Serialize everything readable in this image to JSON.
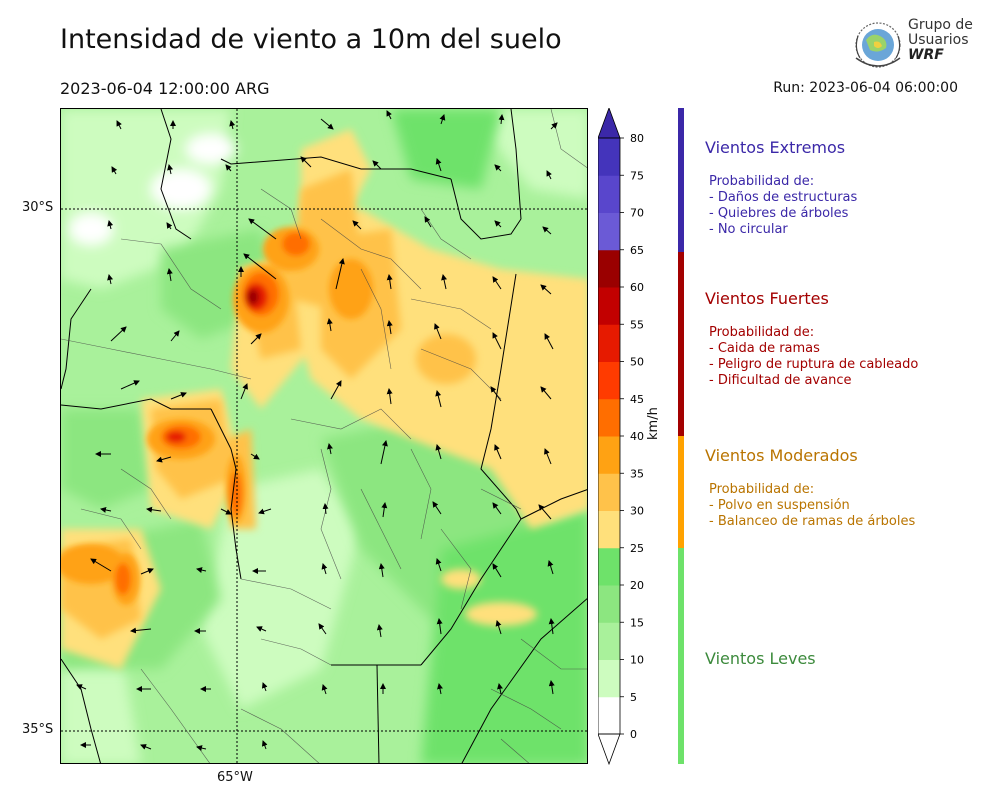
{
  "title": "Intensidad de viento a 10m del suelo",
  "valid_time": "2023-06-04 12:00:00 ARG",
  "run_time": "Run: 2023-06-04 06:00:00",
  "logo": {
    "line1": "Grupo de",
    "line2": "Usuarios",
    "line3": "WRF"
  },
  "map": {
    "lat_labels": [
      "30°S",
      "35°S"
    ],
    "lon_labels": [
      "65°W"
    ]
  },
  "colorbar": {
    "unit": "km/h",
    "ticks": [
      "0",
      "5",
      "10",
      "15",
      "20",
      "25",
      "30",
      "35",
      "40",
      "45",
      "50",
      "55",
      "60",
      "65",
      "70",
      "75",
      "80"
    ],
    "colors": [
      "#ffffff",
      "#cdfcbf",
      "#a9f19b",
      "#8ce680",
      "#6ee26a",
      "#ffe07b",
      "#ffc24a",
      "#ffa213",
      "#ff6e00",
      "#ff3b00",
      "#e61a00",
      "#c20000",
      "#9a0000",
      "#6b5ad6",
      "#5946cc",
      "#4434bb"
    ],
    "over_color": "#3b28a8"
  },
  "categories": [
    {
      "title": "Vientos Extremos",
      "color": "#3b28a8",
      "bar_color": "#3b28a8",
      "header": "Probabilidad de:",
      "items": [
        "- Daños de estructuras",
        "- Quiebres de árboles",
        "- No circular"
      ]
    },
    {
      "title": "Vientos Fuertes",
      "color": "#a30000",
      "bar_color": "#a30000",
      "header": "Probabilidad de:",
      "items": [
        "- Caida de ramas",
        "- Peligro de ruptura de cableado",
        "- Dificultad de avance"
      ]
    },
    {
      "title": "Vientos Moderados",
      "color": "#b97400",
      "bar_color": "#ffa200",
      "header": "Probabilidad de:",
      "items": [
        "- Polvo en suspensión",
        "- Balanceo de ramas de árboles"
      ]
    },
    {
      "title": "Vientos Leves",
      "color": "#3c8a3c",
      "bar_color": "#6ee26a"
    }
  ]
}
